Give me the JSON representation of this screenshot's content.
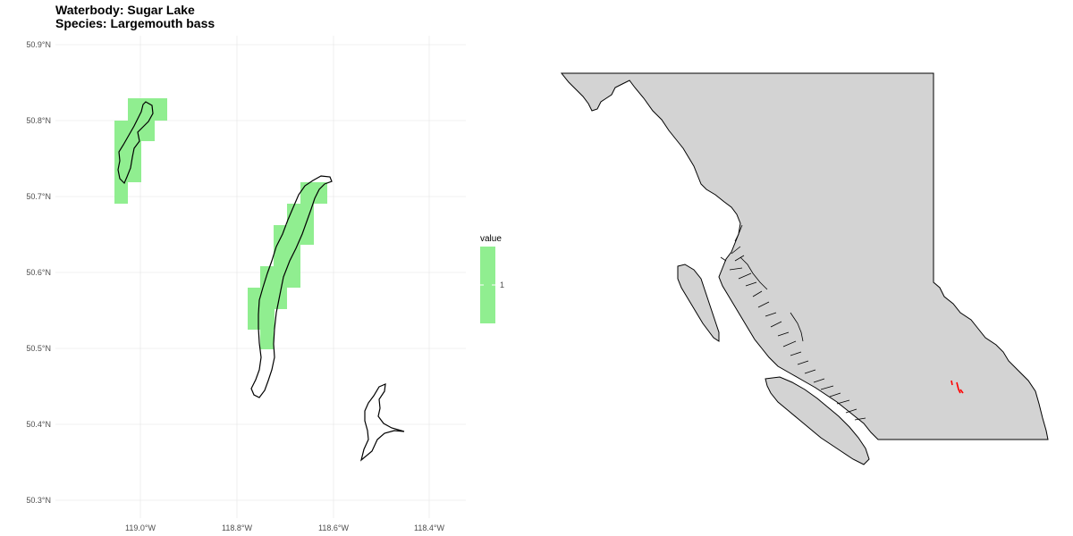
{
  "title": {
    "line1": "Waterbody: Sugar Lake",
    "line2": "Species: Largemouth bass"
  },
  "left_map": {
    "y_ticks": [
      "50.9°N",
      "50.8°N",
      "50.7°N",
      "50.6°N",
      "50.5°N",
      "50.4°N",
      "50.3°N"
    ],
    "x_ticks": [
      "119.0°W",
      "118.8°W",
      "118.6°W",
      "118.4°W"
    ],
    "cell_fill": "#90EE90",
    "legend": {
      "title": "value",
      "label": "1",
      "fill": "#90EE90"
    }
  },
  "right_map": {
    "land_fill": "#D3D3D3",
    "highlight_color": "#FF0000"
  }
}
